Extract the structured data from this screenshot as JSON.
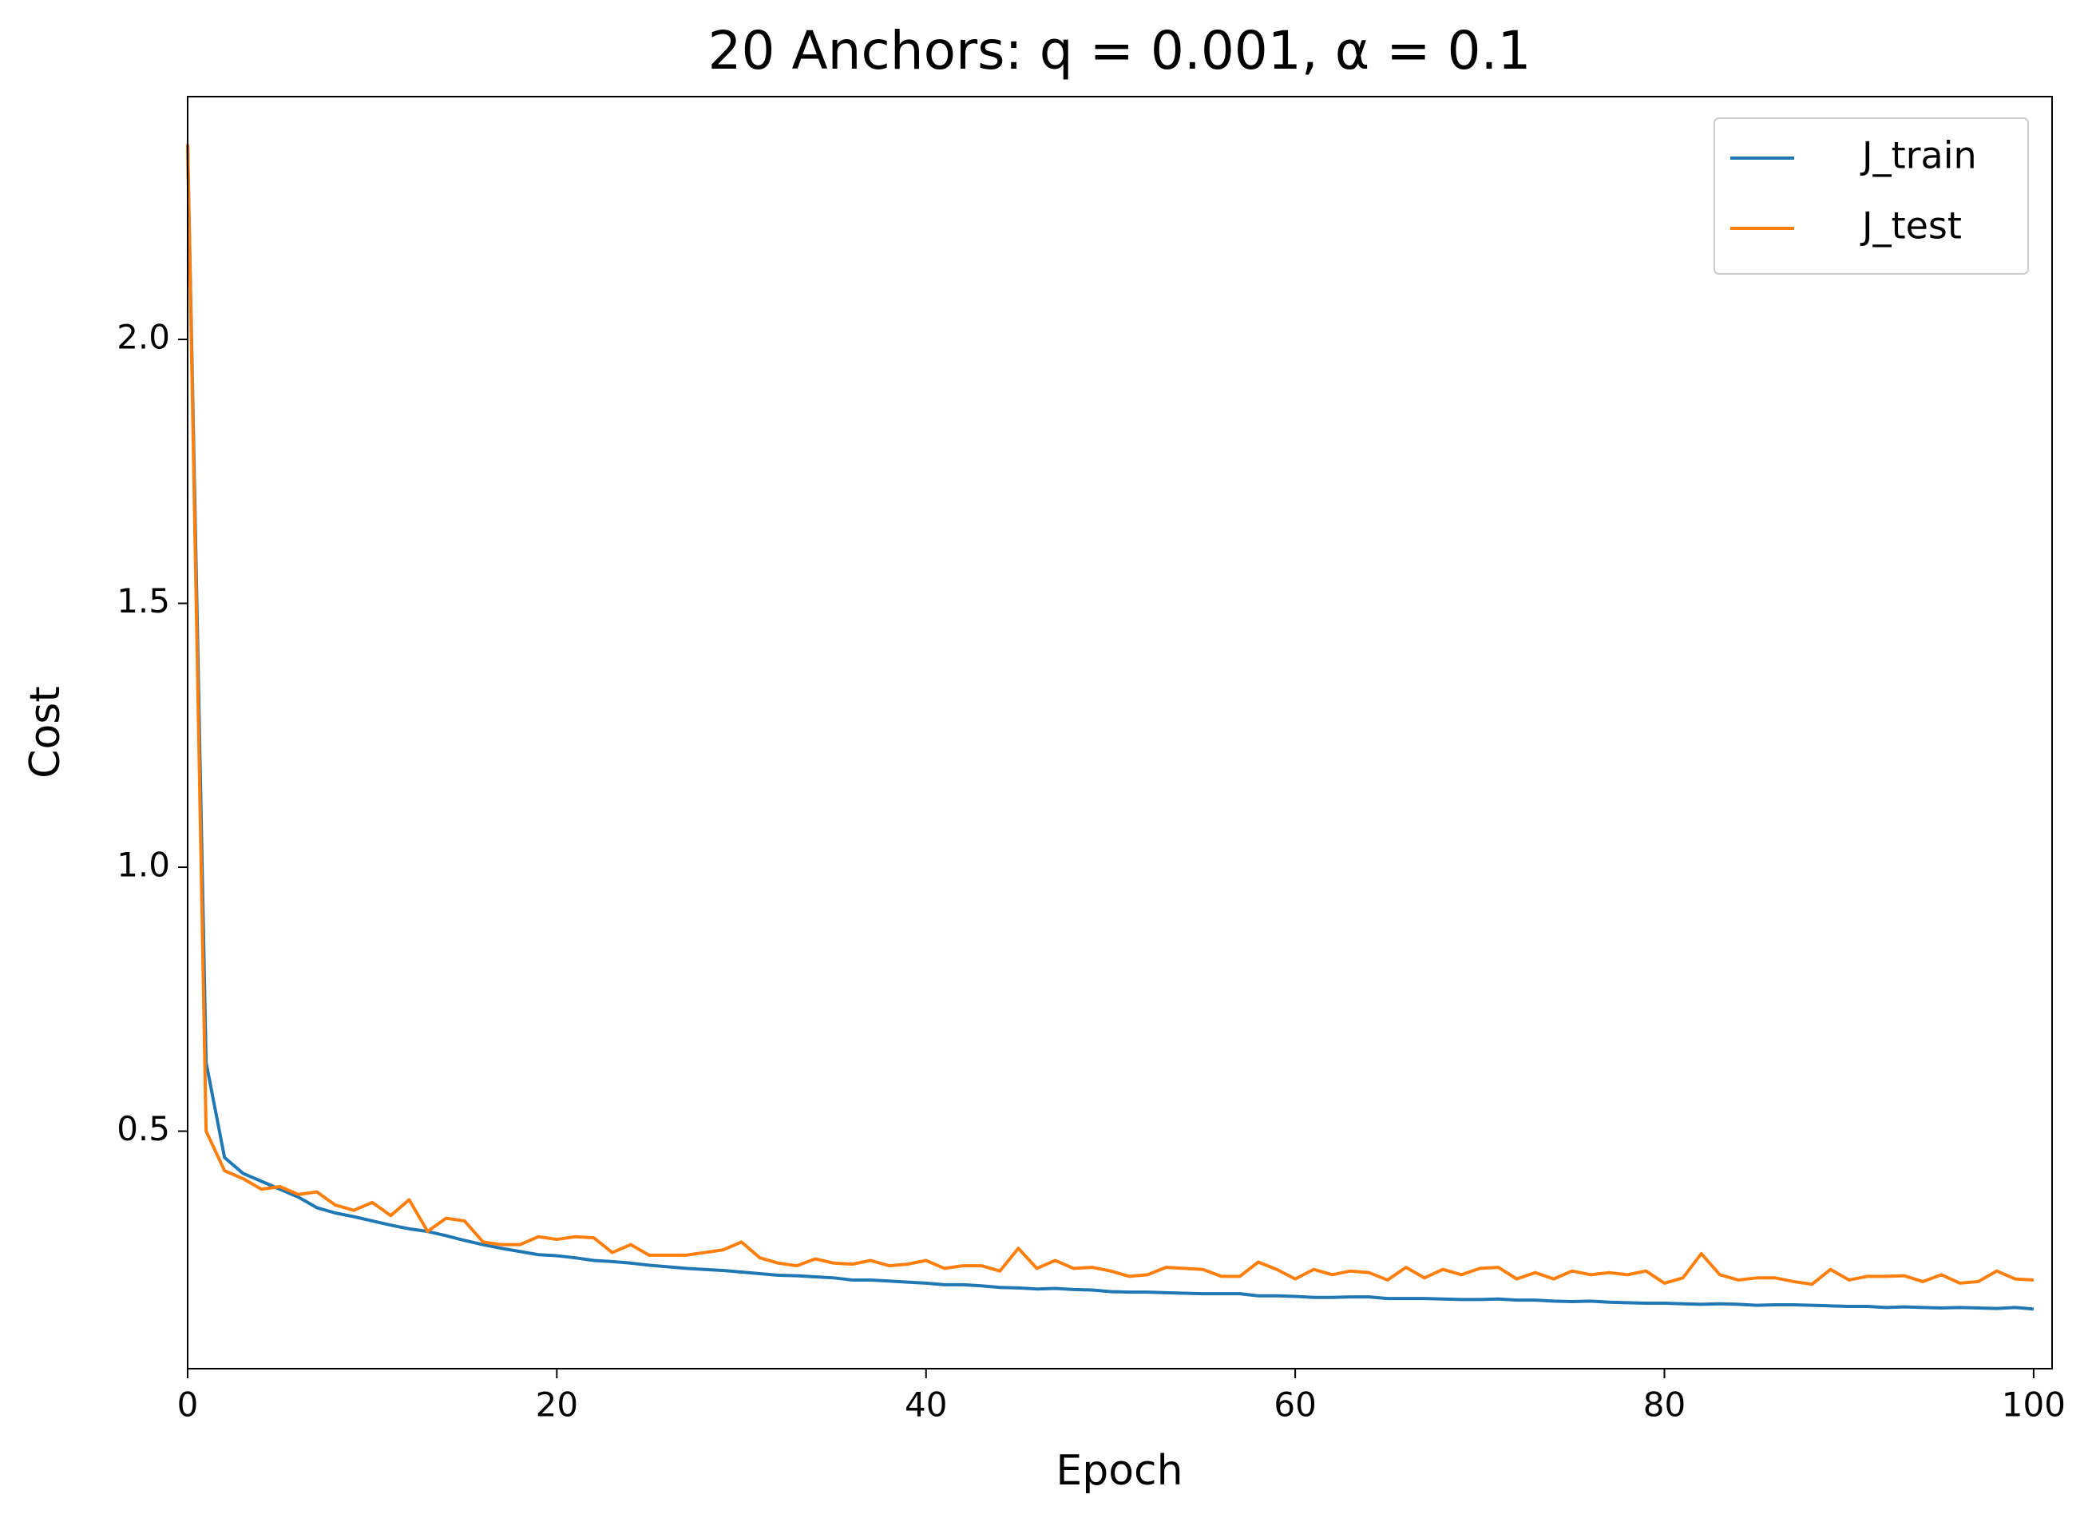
{
  "chart_data": {
    "type": "line",
    "title": "20 Anchors: q = 0.001, α = 0.1",
    "x_label": "Epoch",
    "y_label": "Cost",
    "x": [
      0,
      1,
      2,
      3,
      4,
      5,
      6,
      7,
      8,
      9,
      10,
      11,
      12,
      13,
      14,
      15,
      16,
      17,
      18,
      19,
      20,
      21,
      22,
      23,
      24,
      25,
      26,
      27,
      28,
      29,
      30,
      31,
      32,
      33,
      34,
      35,
      36,
      37,
      38,
      39,
      40,
      41,
      42,
      43,
      44,
      45,
      46,
      47,
      48,
      49,
      50,
      51,
      52,
      53,
      54,
      55,
      56,
      57,
      58,
      59,
      60,
      61,
      62,
      63,
      64,
      65,
      66,
      67,
      68,
      69,
      70,
      71,
      72,
      73,
      74,
      75,
      76,
      77,
      78,
      79,
      80,
      81,
      82,
      83,
      84,
      85,
      86,
      87,
      88,
      89,
      90,
      91,
      92,
      93,
      94,
      95,
      96,
      97,
      98,
      99,
      100
    ],
    "series": [
      {
        "name": "J_train",
        "color": "#1f77b4",
        "values": [
          2.37,
          0.63,
          0.45,
          0.42,
          0.405,
          0.39,
          0.375,
          0.355,
          0.345,
          0.338,
          0.33,
          0.322,
          0.315,
          0.31,
          0.302,
          0.293,
          0.285,
          0.278,
          0.272,
          0.266,
          0.264,
          0.26,
          0.255,
          0.253,
          0.25,
          0.246,
          0.243,
          0.24,
          0.238,
          0.236,
          0.233,
          0.23,
          0.227,
          0.226,
          0.224,
          0.222,
          0.218,
          0.218,
          0.216,
          0.214,
          0.212,
          0.209,
          0.209,
          0.207,
          0.204,
          0.203,
          0.201,
          0.202,
          0.2,
          0.199,
          0.196,
          0.195,
          0.195,
          0.194,
          0.193,
          0.192,
          0.192,
          0.192,
          0.188,
          0.188,
          0.187,
          0.185,
          0.185,
          0.186,
          0.186,
          0.183,
          0.183,
          0.183,
          0.182,
          0.181,
          0.181,
          0.182,
          0.18,
          0.18,
          0.178,
          0.177,
          0.178,
          0.176,
          0.175,
          0.174,
          0.174,
          0.173,
          0.172,
          0.173,
          0.172,
          0.17,
          0.171,
          0.171,
          0.17,
          0.169,
          0.168,
          0.168,
          0.166,
          0.167,
          0.166,
          0.165,
          0.166,
          0.165,
          0.164,
          0.166,
          0.163
        ]
      },
      {
        "name": "J_test",
        "color": "#ff7f0e",
        "values": [
          2.37,
          0.5,
          0.425,
          0.41,
          0.39,
          0.395,
          0.38,
          0.385,
          0.36,
          0.35,
          0.365,
          0.34,
          0.37,
          0.31,
          0.335,
          0.33,
          0.29,
          0.285,
          0.285,
          0.3,
          0.295,
          0.3,
          0.298,
          0.27,
          0.285,
          0.265,
          0.265,
          0.265,
          0.27,
          0.275,
          0.29,
          0.26,
          0.25,
          0.245,
          0.258,
          0.25,
          0.248,
          0.255,
          0.245,
          0.248,
          0.255,
          0.24,
          0.245,
          0.245,
          0.235,
          0.278,
          0.24,
          0.255,
          0.24,
          0.242,
          0.235,
          0.225,
          0.228,
          0.242,
          0.24,
          0.238,
          0.225,
          0.225,
          0.252,
          0.238,
          0.22,
          0.238,
          0.228,
          0.235,
          0.232,
          0.218,
          0.242,
          0.222,
          0.238,
          0.228,
          0.24,
          0.242,
          0.22,
          0.232,
          0.22,
          0.235,
          0.228,
          0.232,
          0.228,
          0.235,
          0.212,
          0.222,
          0.268,
          0.228,
          0.218,
          0.222,
          0.222,
          0.215,
          0.21,
          0.238,
          0.218,
          0.225,
          0.225,
          0.226,
          0.215,
          0.228,
          0.212,
          0.215,
          0.235,
          0.22,
          0.218
        ]
      }
    ],
    "xlim": [
      0,
      101
    ],
    "xticks": [
      0,
      20,
      40,
      60,
      80,
      100
    ],
    "ylim": [
      0.05,
      2.46
    ],
    "yticks": [
      {
        "value": 0.5,
        "label": "0.5"
      },
      {
        "value": 1,
        "label": "1.0"
      },
      1.5,
      {
        "value": 2,
        "label": "2.0"
      }
    ],
    "grid": false,
    "legend": "upper right"
  }
}
